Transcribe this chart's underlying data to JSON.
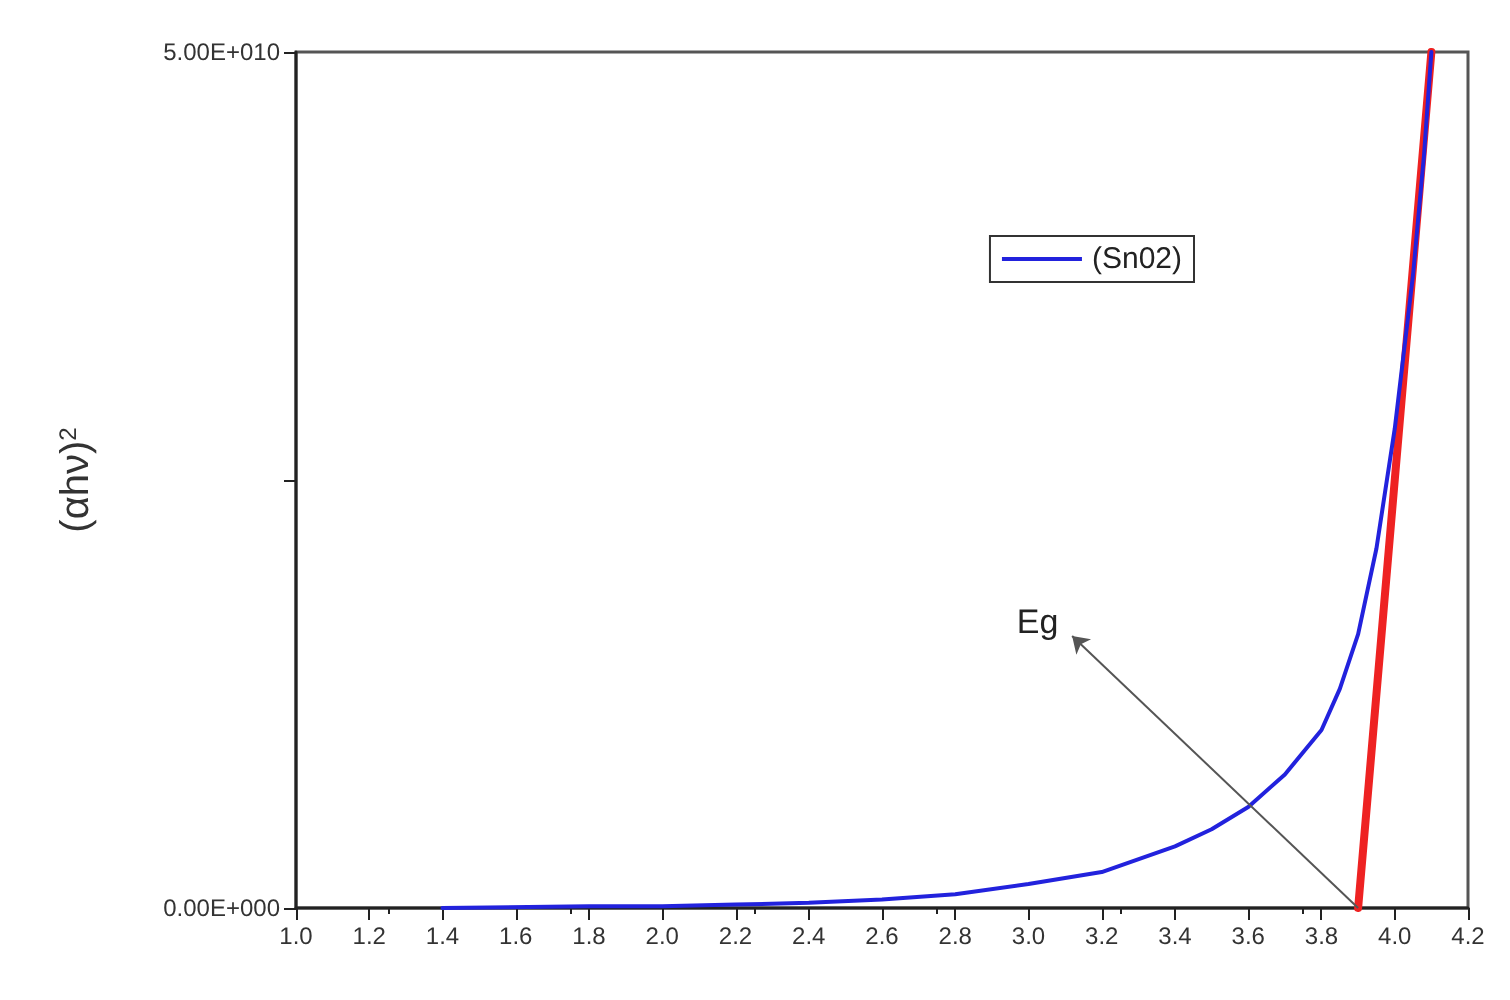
{
  "chart_data": {
    "type": "line",
    "ylabel": "(αhν)$^{2}$",
    "xlim": [
      1.0,
      4.2
    ],
    "ylim": [
      0,
      50000000000
    ],
    "xticks": [
      {
        "value": 1.0,
        "label": "1.0"
      },
      {
        "value": 1.2,
        "label": "1.2"
      },
      {
        "value": 1.4,
        "label": "1.4"
      },
      {
        "value": 1.6,
        "label": "1.6"
      },
      {
        "value": 1.8,
        "label": "1.8"
      },
      {
        "value": 2.0,
        "label": "2.0"
      },
      {
        "value": 2.2,
        "label": "2.2"
      },
      {
        "value": 2.4,
        "label": "2.4"
      },
      {
        "value": 2.6,
        "label": "2.6"
      },
      {
        "value": 2.8,
        "label": "2.8"
      },
      {
        "value": 3.0,
        "label": "3.0"
      },
      {
        "value": 3.2,
        "label": "3.2"
      },
      {
        "value": 3.4,
        "label": "3.4"
      },
      {
        "value": 3.6,
        "label": "3.6"
      },
      {
        "value": 3.8,
        "label": "3.8"
      },
      {
        "value": 4.0,
        "label": "4.0"
      },
      {
        "value": 4.2,
        "label": "4.2"
      }
    ],
    "yticks": [
      {
        "value": 0,
        "label": "0.00E+000"
      },
      {
        "value": 25000000000,
        "label": null
      },
      {
        "value": 50000000000,
        "label": "5.00E+010"
      }
    ],
    "series": [
      {
        "name": "(Sn02)",
        "color": "#2222dd",
        "x": [
          1.4,
          1.8,
          2.0,
          2.2,
          2.4,
          2.6,
          2.8,
          3.0,
          3.2,
          3.4,
          3.5,
          3.6,
          3.7,
          3.8,
          3.85,
          3.9,
          3.95,
          4.0,
          4.05,
          4.08,
          4.1
        ],
        "values": [
          0,
          100000000,
          100000000,
          200000000,
          300000000,
          500000000,
          800000000,
          1400000000,
          2100000000,
          3600000000,
          4600000000,
          5900000000,
          7800000000,
          10400000000,
          12800000000,
          16000000000,
          21000000000,
          28000000000,
          37000000000,
          44000000000,
          50000000000
        ]
      },
      {
        "color": "#ee2222",
        "x": [
          3.9,
          4.1
        ],
        "values": [
          0,
          50000000000
        ]
      }
    ],
    "annotations": [
      {
        "text": "Eg",
        "x": 3.9,
        "y": 0
      }
    ],
    "legend": "top right",
    "grid": false,
    "marker": "none",
    "line_style": "solid"
  }
}
